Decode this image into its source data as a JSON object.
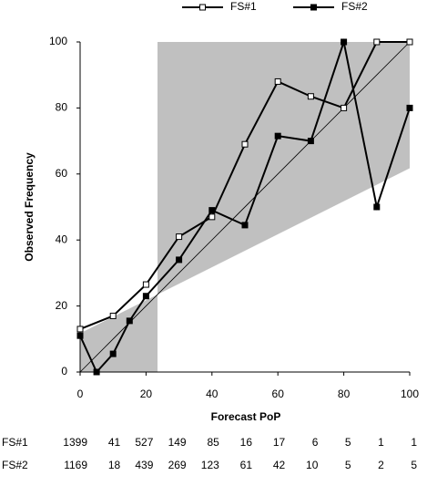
{
  "chart_data": {
    "type": "line",
    "x_label": "Forecast PoP",
    "y_label": "Observed Frequency",
    "xlim": [
      0,
      100
    ],
    "xticks": [
      0,
      20,
      40,
      60,
      80,
      100
    ],
    "ylim": [
      0,
      100
    ],
    "yticks": [
      0,
      20,
      40,
      60,
      80,
      100
    ],
    "series": [
      {
        "name": "FS#1",
        "color": "#000000",
        "marker": "open-square",
        "x": [
          0,
          10,
          20,
          30,
          40,
          50,
          60,
          70,
          80,
          90,
          100
        ],
        "values": [
          13,
          17,
          26.5,
          41,
          47,
          69,
          88,
          83.5,
          80,
          100,
          100
        ]
      },
      {
        "name": "FS#2",
        "color": "#000000",
        "marker": "filled-square",
        "x": [
          0,
          5,
          10,
          15,
          20,
          30,
          40,
          50,
          60,
          70,
          80,
          90,
          100
        ],
        "values": [
          11,
          0,
          5.5,
          15.5,
          23,
          34,
          49,
          44.5,
          71.5,
          70,
          100,
          50,
          80
        ]
      }
    ]
  },
  "table": {
    "columns": [
      0,
      10,
      20,
      30,
      40,
      50,
      60,
      70,
      80,
      90,
      100
    ],
    "rows": [
      {
        "label": "FS#1",
        "counts": [
          1399,
          41,
          527,
          149,
          85,
          16,
          17,
          6,
          5,
          1,
          1
        ]
      },
      {
        "label": "FS#2",
        "counts": [
          1169,
          18,
          439,
          269,
          123,
          61,
          42,
          10,
          5,
          2,
          5
        ]
      }
    ]
  }
}
